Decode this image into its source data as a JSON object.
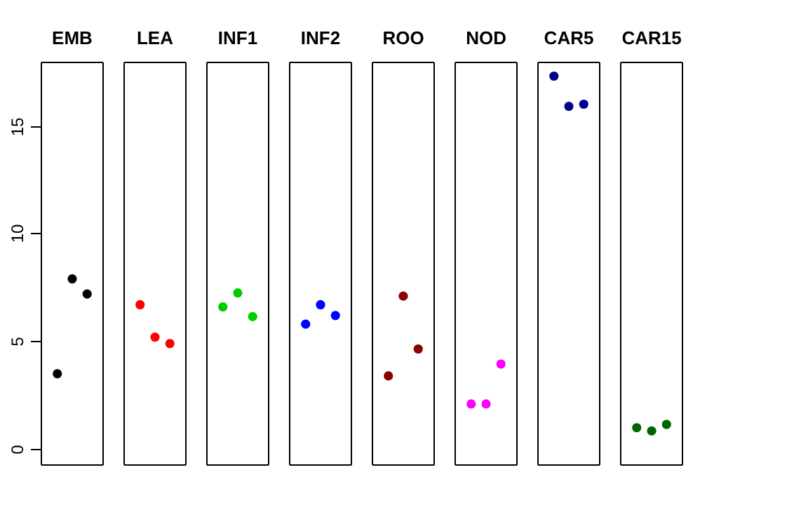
{
  "chart_data": {
    "type": "scatter",
    "categories": [
      "EMB",
      "LEA",
      "INF1",
      "INF2",
      "ROO",
      "NOD",
      "CAR5",
      "CAR15"
    ],
    "series": [
      {
        "values": [
          3.5,
          6.7,
          6.6,
          5.8,
          3.4,
          2.1,
          17.3,
          1.0
        ],
        "colors": [
          "#000000",
          "#ff0000",
          "#00cd00",
          "#0000ff",
          "#8b0000",
          "#ff00ff",
          "#00008b",
          "#006400"
        ]
      },
      {
        "values": [
          7.9,
          5.2,
          7.25,
          6.7,
          7.1,
          2.1,
          15.9,
          0.85
        ],
        "colors": [
          "#000000",
          "#ff0000",
          "#00cd00",
          "#0000ff",
          "#8b0000",
          "#ff00ff",
          "#00008b",
          "#006400"
        ]
      },
      {
        "values": [
          7.2,
          4.9,
          6.15,
          6.2,
          4.65,
          3.95,
          16.0,
          1.15
        ],
        "colors": [
          "#000000",
          "#ff0000",
          "#00cd00",
          "#0000ff",
          "#8b0000",
          "#ff00ff",
          "#00008b",
          "#006400"
        ]
      }
    ],
    "ylim": [
      -0.7,
      18
    ],
    "yticks": [
      0,
      5,
      10,
      15
    ],
    "marker": "circle",
    "grid": false
  }
}
